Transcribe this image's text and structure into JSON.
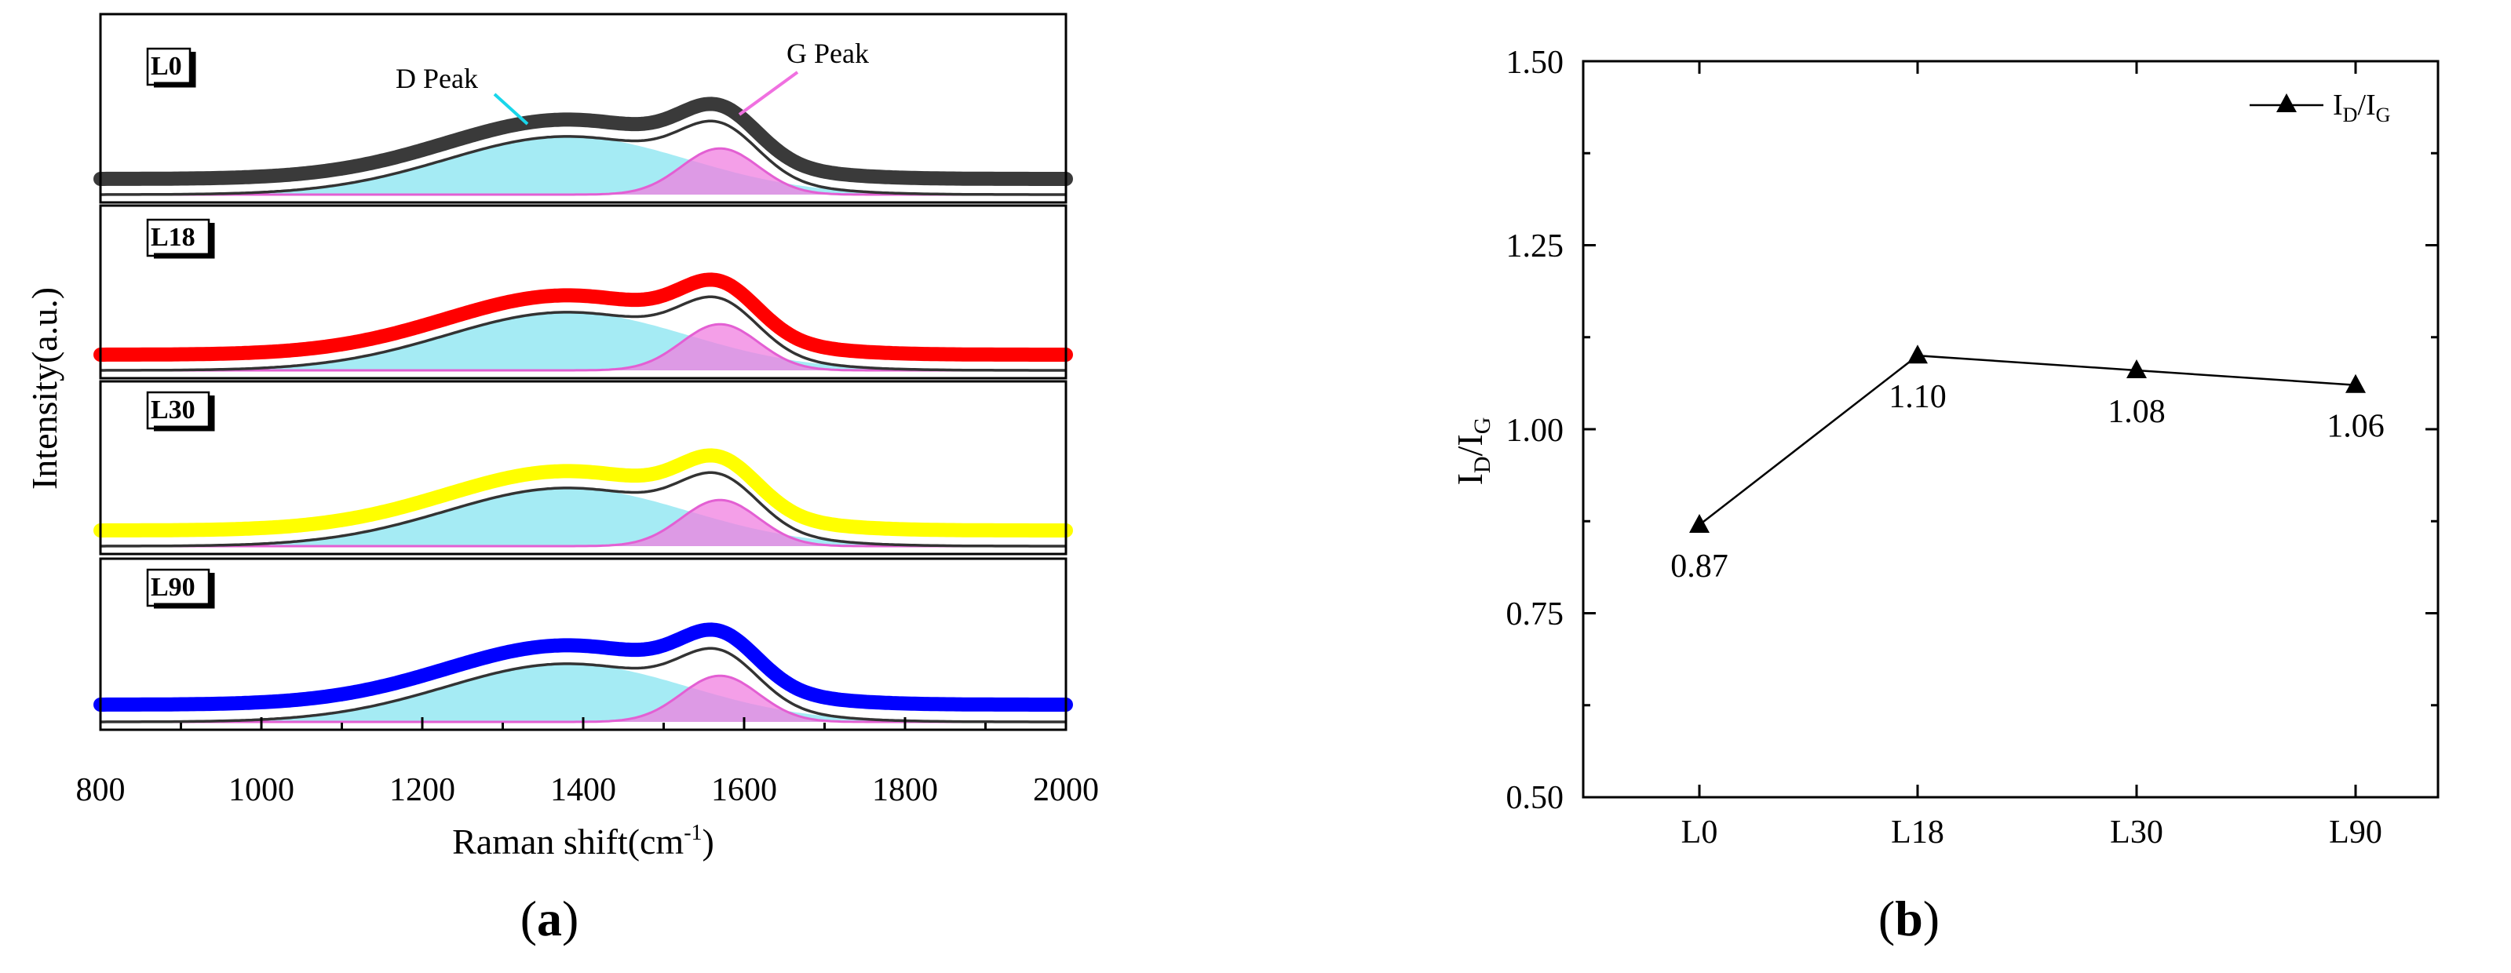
{
  "chart_data": [
    {
      "id": "a",
      "type": "line",
      "caption_open": "(",
      "caption_letter": "a",
      "caption_close": ")",
      "xlabel": "Raman shift(cm",
      "xlabel_sup": "-1",
      "xlabel_end": ")",
      "ylabel": "Intensity(a.u.)",
      "xlim": [
        800,
        2000
      ],
      "xticks": [
        "800",
        "1000",
        "1200",
        "1400",
        "1600",
        "1800",
        "2000"
      ],
      "annotations": {
        "d_peak": "D Peak",
        "g_peak": "G Peak"
      },
      "fit_components": [
        {
          "name": "D Peak",
          "center": 1380,
          "color": "#7fe3f0"
        },
        {
          "name": "G Peak",
          "center": 1570,
          "color": "#f07fe0"
        }
      ],
      "series": [
        {
          "name": "L0",
          "color": "#3a3a3a"
        },
        {
          "name": "L18",
          "color": "#ff0000"
        },
        {
          "name": "L30",
          "color": "#ffff00"
        },
        {
          "name": "L90",
          "color": "#0000ff"
        }
      ]
    },
    {
      "id": "b",
      "type": "line",
      "caption_open": "(",
      "caption_letter": "b",
      "caption_close": ")",
      "ylabel_main": "I",
      "ylabel_sub1": "D",
      "ylabel_mid": "/I",
      "ylabel_sub2": "G",
      "legend_main": "I",
      "legend_sub1": "D",
      "legend_mid": "/I",
      "legend_sub2": "G",
      "legend_position": "top-right",
      "categories": [
        "L0",
        "L18",
        "L30",
        "L90"
      ],
      "values": [
        0.87,
        1.1,
        1.08,
        1.06
      ],
      "value_labels": [
        "0.87",
        "1.10",
        "1.08",
        "1.06"
      ],
      "ylim": [
        0.5,
        1.5
      ],
      "yticks": [
        "0.50",
        "0.75",
        "1.00",
        "1.25",
        "1.50"
      ]
    }
  ]
}
